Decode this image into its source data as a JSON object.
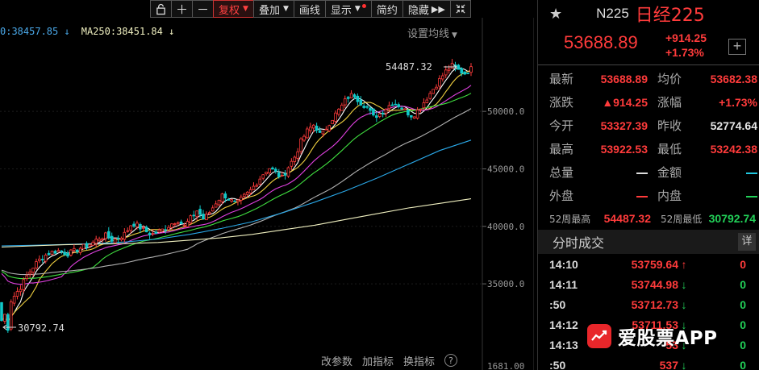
{
  "toolbar": {
    "lock_icon": "lock-icon",
    "zoom_in_icon": "plus-icon",
    "zoom_out_icon": "minus-icon",
    "fuquan": "复权",
    "diejia": "叠加",
    "huaxian": "画线",
    "xianshi": "显示",
    "jianyue": "简约",
    "yincang": "隐藏",
    "expand_icon": "double-chevron-right-icon",
    "fullscreen_icon": "collapse-icon"
  },
  "ma": {
    "ma200": "0:38457.85",
    "ma250": "MA250:38451.84",
    "setting": "设置均线"
  },
  "axis": {
    "ticks": [
      "50000.0",
      "45000.0",
      "40000.0",
      "35000.0"
    ],
    "partial_bottom": "1681.00"
  },
  "extremes": {
    "high": "54487.32",
    "low": "30792.74"
  },
  "bottom_tools": {
    "params": "改参数",
    "add_indicator": "加指标",
    "switch_indicator": "换指标"
  },
  "quote": {
    "code": "N225",
    "name": "日经225",
    "price": "53688.89",
    "change": "+914.25",
    "change_pct": "+1.73%"
  },
  "stats": {
    "zuixin_label": "最新",
    "zuixin": "53688.89",
    "junjia_label": "均价",
    "junjia": "53682.38",
    "zhangdie_label": "涨跌",
    "zhangdie": "▲914.25",
    "zhangfu_label": "涨幅",
    "zhangfu": "+1.73%",
    "jinkai_label": "今开",
    "jinkai": "53327.39",
    "zuoshou_label": "昨收",
    "zuoshou": "52774.64",
    "zuigao_label": "最高",
    "zuigao": "53922.53",
    "zuidi_label": "最低",
    "zuidi": "53242.38",
    "zongliang_label": "总量",
    "jine_label": "金额",
    "waipan_label": "外盘",
    "neipan_label": "内盘",
    "wk52_high_label": "52周最高",
    "wk52_high": "54487.32",
    "wk52_low_label": "52周最低",
    "wk52_low": "30792.74"
  },
  "ticks": {
    "title": "分时成交",
    "detail": "详",
    "rows": [
      {
        "time": "14:10",
        "price": "53759.64",
        "dir": "up",
        "vol": "0"
      },
      {
        "time": "14:11",
        "price": "53744.98",
        "dir": "down",
        "vol": "0"
      },
      {
        "time": ":50",
        "price": "53712.73",
        "dir": "down",
        "vol": "0"
      },
      {
        "time": "14:12",
        "price": "53711.53",
        "dir": "down",
        "vol": "0"
      },
      {
        "time": "14:13",
        "price": "53",
        "dir": "down",
        "vol": "0"
      },
      {
        "time": ":50",
        "price": "537",
        "dir": "down",
        "vol": "0"
      }
    ]
  },
  "watermark": {
    "text": "爱股票APP",
    "icon": "aigupiao-logo-icon"
  },
  "colors": {
    "up": "#ff3b3b",
    "down": "#22d058",
    "ma5": "#ffffff",
    "ma10": "#f0d040",
    "ma20": "#e040e0",
    "ma30": "#40e040",
    "ma60": "#b0b0b0",
    "ma200": "#2aa8e8",
    "ma250": "#f0f0c0"
  },
  "chart_data": {
    "type": "candlestick",
    "y_ticks": [
      50000,
      45000,
      40000,
      35000
    ],
    "ylim": [
      31000,
      56000
    ],
    "high": 54487.32,
    "low": 30792.74,
    "close_path": [
      31500,
      33200,
      34000,
      34800,
      35800,
      36600,
      37200,
      37600,
      37800,
      37900,
      37600,
      37800,
      38100,
      38300,
      38600,
      39000,
      39200,
      38800,
      39000,
      39400,
      40300,
      40000,
      39600,
      39300,
      39500,
      39800,
      40200,
      40600,
      40000,
      40700,
      41400,
      40600,
      41300,
      42200,
      42800,
      42300,
      41900,
      42500,
      43000,
      43700,
      44500,
      45100,
      44700,
      44200,
      45200,
      46100,
      47500,
      48400,
      48900,
      47800,
      48800,
      49600,
      50300,
      51200,
      51500,
      50800,
      50400,
      49500,
      49800,
      50300,
      50800,
      50500,
      50000,
      49600,
      50200,
      51000,
      51800,
      52600,
      53400,
      54000,
      53600,
      53300,
      53700
    ],
    "ma200_path": [
      38300,
      38350,
      38420,
      38500,
      38650,
      38900,
      39300,
      39800,
      40400,
      41200,
      42100,
      43100,
      44200,
      45400,
      46600,
      47500
    ],
    "ma250_path": [
      38200,
      38300,
      38400,
      38460,
      38500,
      38600,
      38800,
      39000,
      39300,
      39700,
      40100,
      40600,
      41100,
      41600,
      42000,
      42400
    ]
  }
}
